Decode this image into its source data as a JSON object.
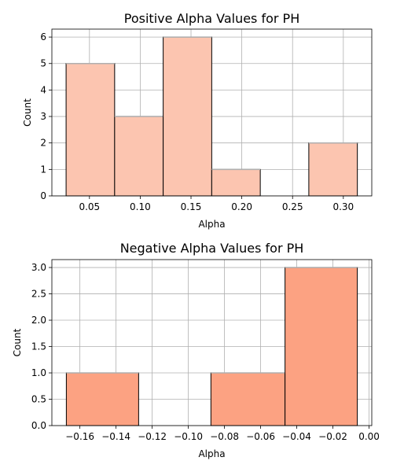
{
  "chart_data": [
    {
      "type": "bar",
      "title": "Positive Alpha Values for PH",
      "xlabel": "Alpha",
      "ylabel": "Count",
      "color": "#fcc5b0",
      "xlim": [
        0.013,
        0.328
      ],
      "ylim": [
        0,
        6.3
      ],
      "xticks": [
        0.05,
        0.1,
        0.15,
        0.2,
        0.25,
        0.3
      ],
      "xtick_labels": [
        "0.05",
        "0.10",
        "0.15",
        "0.20",
        "0.25",
        "0.30"
      ],
      "yticks": [
        0,
        1,
        2,
        3,
        4,
        5,
        6
      ],
      "ytick_labels": [
        "0",
        "1",
        "2",
        "3",
        "4",
        "5",
        "6"
      ],
      "bin_edges": [
        0.027,
        0.0748,
        0.1226,
        0.1704,
        0.2182,
        0.266,
        0.3138
      ],
      "values": [
        5,
        3,
        6,
        1,
        0,
        2
      ],
      "grid": true
    },
    {
      "type": "bar",
      "title": "Negative Alpha Values for PH",
      "xlabel": "Alpha",
      "ylabel": "Count",
      "color": "#fca282",
      "xlim": [
        -0.1755,
        0.0015
      ],
      "ylim": [
        0,
        3.15
      ],
      "xticks": [
        -0.16,
        -0.14,
        -0.12,
        -0.1,
        -0.08,
        -0.06,
        -0.04,
        -0.02,
        0.0
      ],
      "xtick_labels": [
        "−0.16",
        "−0.14",
        "−0.12",
        "−0.10",
        "−0.08",
        "−0.06",
        "−0.04",
        "−0.02",
        "0.00"
      ],
      "yticks": [
        0,
        0.5,
        1,
        1.5,
        2,
        2.5,
        3
      ],
      "ytick_labels": [
        "0.0",
        "0.5",
        "1.0",
        "1.5",
        "2.0",
        "2.5",
        "3.0"
      ],
      "bin_edges": [
        -0.1675,
        -0.1275,
        -0.0875,
        -0.0465,
        -0.0065
      ],
      "values": [
        1,
        0,
        1,
        3
      ],
      "grid": true
    }
  ]
}
